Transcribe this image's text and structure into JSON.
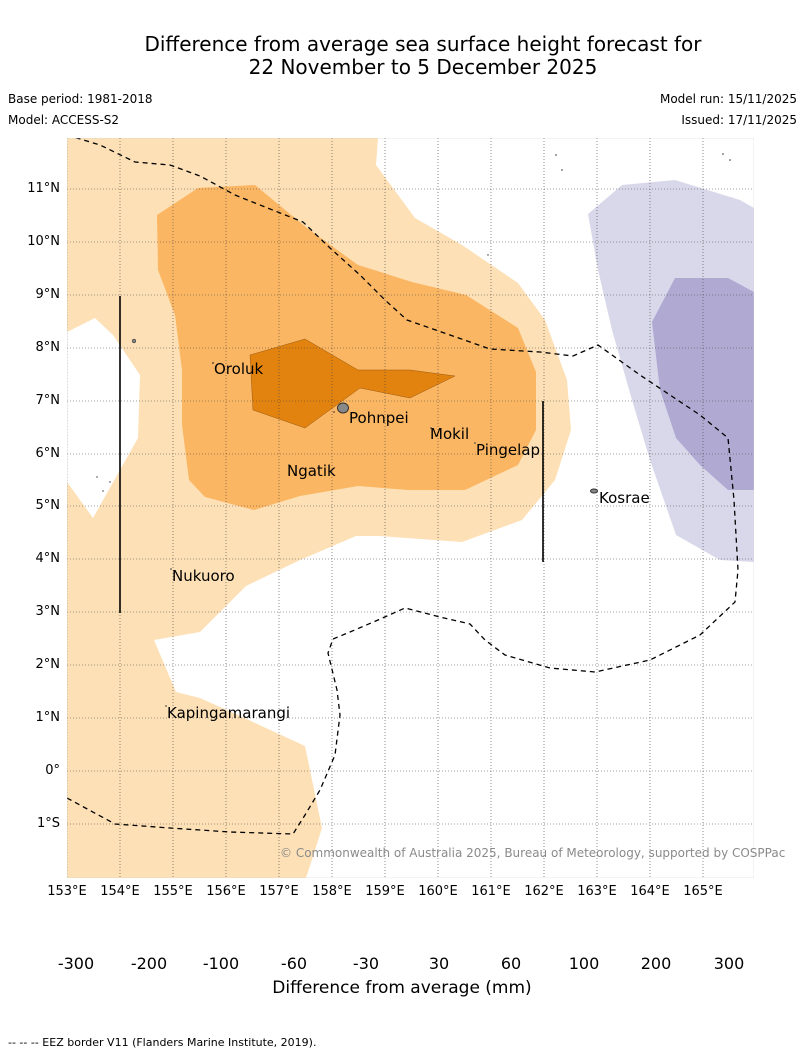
{
  "header": {
    "title_line1": "Difference from average sea surface height forecast for",
    "title_line2": "22 November to 5 December 2025",
    "base_period": "Base period: 1981-2018",
    "model": "Model: ACCESS-S2",
    "model_run": "Model run: 15/11/2025",
    "issued": "Issued: 17/11/2025"
  },
  "map": {
    "lat_labels": [
      "11°N",
      "10°N",
      "9°N",
      "8°N",
      "7°N",
      "6°N",
      "5°N",
      "4°N",
      "3°N",
      "2°N",
      "1°N",
      "0°",
      "1°S"
    ],
    "lon_labels": [
      "153°E",
      "154°E",
      "155°E",
      "156°E",
      "157°E",
      "158°E",
      "159°E",
      "160°E",
      "161°E",
      "162°E",
      "163°E",
      "164°E",
      "165°E"
    ],
    "places": {
      "oroluk": "Oroluk",
      "pohnpei": "Pohnpei",
      "mokil": "Mokil",
      "pingelap": "Pingelap",
      "ngatik": "Ngatik",
      "kosrae": "Kosrae",
      "nukuoro": "Nukuoro",
      "kapingamarangi": "Kapingamarangi"
    },
    "copyright": "© Commonwealth of Australia 2025, Bureau of Meteorology, supported by COSPPac"
  },
  "legend": {
    "ticks": [
      "-300",
      "-200",
      "-100",
      "-60",
      "-30",
      "30",
      "60",
      "100",
      "200",
      "300"
    ],
    "colors": [
      "#2d0a4e",
      "#54278f",
      "#7e6faf",
      "#b0a9d2",
      "#d9d8eb",
      "#ffffff",
      "#fde0b5",
      "#fbb663",
      "#e2820f",
      "#b35606",
      "#7f3b08"
    ],
    "title": "Difference from average (mm)"
  },
  "footnote": "--  --  -- EEZ border V11 (Flanders Marine Institute, 2019)."
}
